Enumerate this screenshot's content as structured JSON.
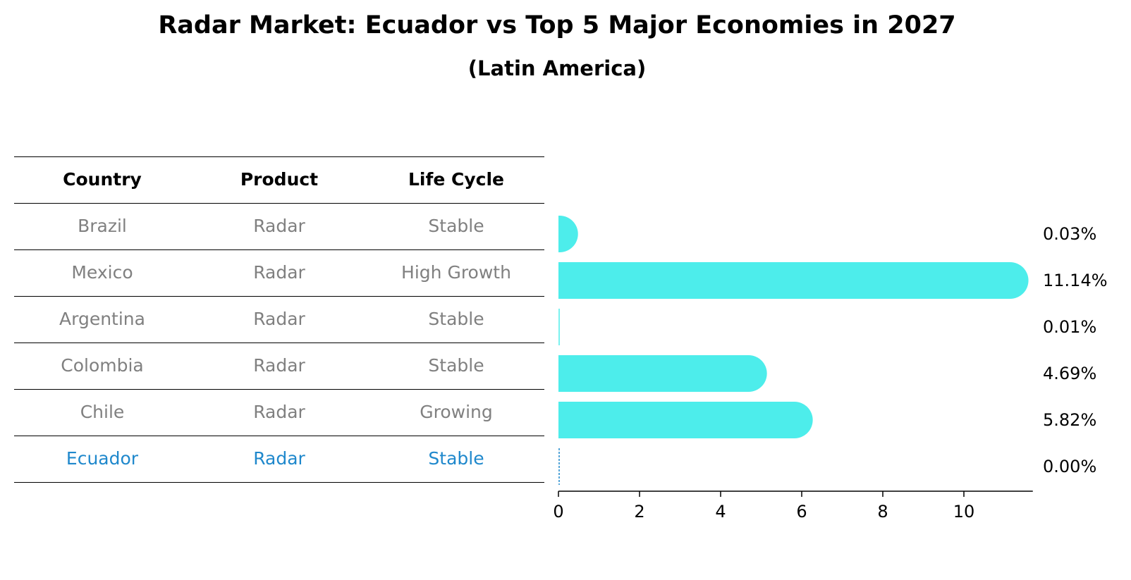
{
  "title": "Radar Market: Ecuador vs Top 5 Major Economies in 2027",
  "subtitle": "(Latin America)",
  "table": {
    "headers": [
      "Country",
      "Product",
      "Life Cycle"
    ],
    "rows": [
      [
        "Brazil",
        "Radar",
        "Stable"
      ],
      [
        "Mexico",
        "Radar",
        "High Growth"
      ],
      [
        "Argentina",
        "Radar",
        "Stable"
      ],
      [
        "Colombia",
        "Radar",
        "Stable"
      ],
      [
        "Chile",
        "Radar",
        "Growing"
      ],
      [
        "Ecuador",
        "Radar",
        "Stable"
      ]
    ],
    "highlight_row": 5,
    "highlight_color": "#1f88cc",
    "text_color": "#808080"
  },
  "chart_data": {
    "type": "bar",
    "orientation": "horizontal",
    "categories": [
      "Brazil",
      "Mexico",
      "Argentina",
      "Colombia",
      "Chile",
      "Ecuador"
    ],
    "values": [
      0.03,
      11.14,
      0.01,
      4.69,
      5.82,
      0.0
    ],
    "value_labels": [
      "0.03%",
      "11.14%",
      "0.01%",
      "4.69%",
      "5.82%",
      "0.00%"
    ],
    "xticks": [
      "0",
      "2",
      "4",
      "6",
      "8",
      "10"
    ],
    "xlim": [
      0,
      11.7
    ],
    "bar_color": "#4dedeb",
    "highlight_color": "#1f88cc",
    "grid": false
  }
}
